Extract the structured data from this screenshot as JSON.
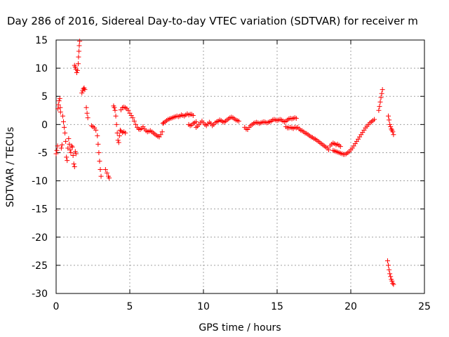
{
  "chart_data": {
    "type": "scatter",
    "title": "Day 286 of 2016, Sidereal Day-to-day VTEC variation (SDTVAR) for receiver m",
    "xlabel": "GPS time / hours",
    "ylabel": "SDTVAR / TECUs",
    "xlim": [
      0,
      25
    ],
    "ylim": [
      -30,
      15
    ],
    "xticks": [
      0,
      5,
      10,
      15,
      20,
      25
    ],
    "yticks": [
      -30,
      -25,
      -20,
      -15,
      -10,
      -5,
      0,
      5,
      10,
      15
    ],
    "grid": true,
    "marker": "+",
    "color": "#ff0000",
    "series": [
      {
        "name": "SDTVAR",
        "points": [
          [
            0.0,
            -5.2
          ],
          [
            0.05,
            -4.6
          ],
          [
            0.1,
            -3.8
          ],
          [
            0.12,
            2.8
          ],
          [
            0.15,
            3.5
          ],
          [
            0.2,
            4.2
          ],
          [
            0.25,
            4.6
          ],
          [
            0.28,
            3.0
          ],
          [
            0.3,
            2.2
          ],
          [
            0.35,
            -4.2
          ],
          [
            0.4,
            -3.6
          ],
          [
            0.45,
            1.5
          ],
          [
            0.5,
            0.5
          ],
          [
            0.55,
            -0.5
          ],
          [
            0.6,
            -1.5
          ],
          [
            0.65,
            -3.0
          ],
          [
            0.7,
            -5.8
          ],
          [
            0.75,
            -6.4
          ],
          [
            0.8,
            -4.2
          ],
          [
            0.85,
            -2.5
          ],
          [
            0.9,
            -3.5
          ],
          [
            0.95,
            -4.5
          ],
          [
            1.0,
            -5.0
          ],
          [
            1.05,
            -3.8
          ],
          [
            1.1,
            -4.0
          ],
          [
            1.15,
            -5.5
          ],
          [
            1.2,
            -7.0
          ],
          [
            1.25,
            -7.5
          ],
          [
            1.3,
            -4.8
          ],
          [
            1.35,
            -5.2
          ],
          [
            1.25,
            10.5
          ],
          [
            1.3,
            10.2
          ],
          [
            1.35,
            9.8
          ],
          [
            1.4,
            9.2
          ],
          [
            1.45,
            9.6
          ],
          [
            1.5,
            10.8
          ],
          [
            1.52,
            12.0
          ],
          [
            1.55,
            13.0
          ],
          [
            1.57,
            14.0
          ],
          [
            1.6,
            14.8
          ],
          [
            1.75,
            5.6
          ],
          [
            1.8,
            6.0
          ],
          [
            1.85,
            6.3
          ],
          [
            1.9,
            6.5
          ],
          [
            1.95,
            6.2
          ],
          [
            2.05,
            3.0
          ],
          [
            2.1,
            2.0
          ],
          [
            2.15,
            1.2
          ],
          [
            2.4,
            -0.2
          ],
          [
            2.5,
            -0.4
          ],
          [
            2.6,
            -0.6
          ],
          [
            2.7,
            -1.0
          ],
          [
            2.8,
            -2.0
          ],
          [
            2.85,
            -3.5
          ],
          [
            2.9,
            -5.0
          ],
          [
            2.95,
            -6.5
          ],
          [
            3.0,
            -8.0
          ],
          [
            3.05,
            -9.2
          ],
          [
            3.35,
            -8.0
          ],
          [
            3.45,
            -8.6
          ],
          [
            3.55,
            -9.2
          ],
          [
            3.6,
            -9.5
          ],
          [
            3.9,
            3.3
          ],
          [
            3.95,
            3.0
          ],
          [
            4.0,
            2.5
          ],
          [
            4.05,
            1.5
          ],
          [
            4.1,
            0.0
          ],
          [
            4.15,
            -1.5
          ],
          [
            4.2,
            -2.8
          ],
          [
            4.25,
            -3.2
          ],
          [
            4.3,
            -2.0
          ],
          [
            4.35,
            -1.0
          ],
          [
            4.4,
            -1.2
          ],
          [
            4.5,
            -1.4
          ],
          [
            4.6,
            -1.3
          ],
          [
            4.7,
            -1.5
          ],
          [
            4.4,
            2.6
          ],
          [
            4.5,
            3.0
          ],
          [
            4.6,
            3.1
          ],
          [
            4.7,
            3.0
          ],
          [
            4.8,
            2.8
          ],
          [
            4.9,
            2.5
          ],
          [
            5.0,
            2.0
          ],
          [
            5.1,
            1.6
          ],
          [
            5.2,
            1.2
          ],
          [
            5.3,
            0.6
          ],
          [
            5.4,
            0.0
          ],
          [
            5.5,
            -0.5
          ],
          [
            5.6,
            -0.8
          ],
          [
            5.7,
            -0.9
          ],
          [
            5.8,
            -0.7
          ],
          [
            5.9,
            -0.4
          ],
          [
            6.0,
            -0.8
          ],
          [
            6.1,
            -1.1
          ],
          [
            6.2,
            -1.3
          ],
          [
            6.3,
            -1.2
          ],
          [
            6.4,
            -1.1
          ],
          [
            6.5,
            -1.3
          ],
          [
            6.6,
            -1.5
          ],
          [
            6.7,
            -1.7
          ],
          [
            6.8,
            -1.9
          ],
          [
            6.9,
            -2.1
          ],
          [
            7.0,
            -2.2
          ],
          [
            7.1,
            -1.8
          ],
          [
            7.2,
            -1.3
          ],
          [
            7.25,
            0.2
          ],
          [
            7.3,
            0.3
          ],
          [
            7.4,
            0.5
          ],
          [
            7.5,
            0.7
          ],
          [
            7.6,
            0.9
          ],
          [
            7.7,
            1.0
          ],
          [
            7.8,
            1.1
          ],
          [
            7.9,
            1.2
          ],
          [
            8.0,
            1.3
          ],
          [
            8.1,
            1.4
          ],
          [
            8.2,
            1.5
          ],
          [
            8.3,
            1.4
          ],
          [
            8.4,
            1.5
          ],
          [
            8.5,
            1.7
          ],
          [
            8.6,
            1.6
          ],
          [
            8.7,
            1.5
          ],
          [
            8.8,
            1.7
          ],
          [
            8.9,
            1.9
          ],
          [
            9.0,
            1.7
          ],
          [
            9.1,
            1.8
          ],
          [
            9.2,
            1.8
          ],
          [
            9.3,
            1.6
          ],
          [
            9.0,
            0.0
          ],
          [
            9.1,
            -0.2
          ],
          [
            9.2,
            -0.1
          ],
          [
            9.3,
            0.2
          ],
          [
            9.4,
            0.3
          ],
          [
            9.5,
            0.5
          ],
          [
            9.5,
            -0.5
          ],
          [
            9.6,
            -0.3
          ],
          [
            9.7,
            0.0
          ],
          [
            9.8,
            0.3
          ],
          [
            9.9,
            0.6
          ],
          [
            10.0,
            0.3
          ],
          [
            10.1,
            0.0
          ],
          [
            10.2,
            -0.2
          ],
          [
            10.3,
            0.1
          ],
          [
            10.4,
            0.4
          ],
          [
            10.5,
            0.2
          ],
          [
            10.6,
            -0.2
          ],
          [
            10.7,
            0.0
          ],
          [
            10.8,
            0.3
          ],
          [
            10.9,
            0.5
          ],
          [
            11.0,
            0.6
          ],
          [
            11.1,
            0.8
          ],
          [
            11.2,
            0.7
          ],
          [
            11.3,
            0.5
          ],
          [
            11.4,
            0.4
          ],
          [
            11.5,
            0.6
          ],
          [
            11.6,
            0.8
          ],
          [
            11.7,
            1.0
          ],
          [
            11.8,
            1.2
          ],
          [
            11.9,
            1.3
          ],
          [
            12.0,
            1.2
          ],
          [
            12.1,
            1.0
          ],
          [
            12.2,
            0.8
          ],
          [
            12.3,
            0.7
          ],
          [
            12.4,
            0.6
          ],
          [
            12.8,
            -0.5
          ],
          [
            12.9,
            -0.8
          ],
          [
            13.0,
            -0.9
          ],
          [
            13.1,
            -0.5
          ],
          [
            13.2,
            -0.2
          ],
          [
            13.3,
            0.0
          ],
          [
            13.4,
            0.2
          ],
          [
            13.5,
            0.3
          ],
          [
            13.6,
            0.4
          ],
          [
            13.7,
            0.3
          ],
          [
            13.8,
            0.2
          ],
          [
            13.9,
            0.3
          ],
          [
            14.0,
            0.4
          ],
          [
            14.1,
            0.5
          ],
          [
            14.2,
            0.4
          ],
          [
            14.3,
            0.3
          ],
          [
            14.4,
            0.4
          ],
          [
            14.5,
            0.5
          ],
          [
            14.6,
            0.6
          ],
          [
            14.7,
            0.8
          ],
          [
            14.8,
            0.9
          ],
          [
            14.9,
            0.8
          ],
          [
            15.0,
            0.7
          ],
          [
            15.1,
            0.8
          ],
          [
            15.2,
            0.9
          ],
          [
            15.3,
            0.8
          ],
          [
            15.4,
            0.6
          ],
          [
            15.5,
            0.5
          ],
          [
            15.6,
            0.6
          ],
          [
            15.7,
            0.8
          ],
          [
            15.8,
            1.0
          ],
          [
            15.9,
            1.1
          ],
          [
            16.0,
            1.0
          ],
          [
            16.1,
            1.1
          ],
          [
            16.2,
            1.2
          ],
          [
            16.3,
            1.1
          ],
          [
            15.6,
            -0.4
          ],
          [
            15.7,
            -0.6
          ],
          [
            15.8,
            -0.6
          ],
          [
            15.9,
            -0.5
          ],
          [
            16.0,
            -0.6
          ],
          [
            16.1,
            -0.7
          ],
          [
            16.2,
            -0.5
          ],
          [
            16.3,
            -0.6
          ],
          [
            16.4,
            -0.5
          ],
          [
            16.5,
            -0.8
          ],
          [
            16.6,
            -1.0
          ],
          [
            16.7,
            -1.1
          ],
          [
            16.8,
            -1.3
          ],
          [
            16.9,
            -1.5
          ],
          [
            17.0,
            -1.6
          ],
          [
            17.1,
            -1.8
          ],
          [
            17.2,
            -2.0
          ],
          [
            17.3,
            -2.2
          ],
          [
            17.4,
            -2.3
          ],
          [
            17.5,
            -2.5
          ],
          [
            17.6,
            -2.6
          ],
          [
            17.7,
            -2.8
          ],
          [
            17.8,
            -3.0
          ],
          [
            17.9,
            -3.2
          ],
          [
            18.0,
            -3.4
          ],
          [
            18.1,
            -3.6
          ],
          [
            18.2,
            -3.8
          ],
          [
            18.3,
            -4.0
          ],
          [
            18.4,
            -4.2
          ],
          [
            18.5,
            -4.5
          ],
          [
            18.6,
            -3.8
          ],
          [
            18.7,
            -3.5
          ],
          [
            18.8,
            -3.3
          ],
          [
            18.9,
            -3.4
          ],
          [
            19.0,
            -3.6
          ],
          [
            19.1,
            -3.5
          ],
          [
            19.2,
            -3.7
          ],
          [
            19.3,
            -3.9
          ],
          [
            18.8,
            -4.6
          ],
          [
            18.9,
            -4.7
          ],
          [
            19.0,
            -4.8
          ],
          [
            19.1,
            -4.9
          ],
          [
            19.2,
            -5.0
          ],
          [
            19.3,
            -5.1
          ],
          [
            19.4,
            -5.2
          ],
          [
            19.5,
            -5.3
          ],
          [
            19.6,
            -5.3
          ],
          [
            19.7,
            -5.2
          ],
          [
            19.8,
            -5.0
          ],
          [
            19.9,
            -4.8
          ],
          [
            20.0,
            -4.5
          ],
          [
            20.1,
            -4.2
          ],
          [
            20.2,
            -3.8
          ],
          [
            20.3,
            -3.4
          ],
          [
            20.4,
            -3.0
          ],
          [
            20.5,
            -2.6
          ],
          [
            20.6,
            -2.2
          ],
          [
            20.7,
            -1.8
          ],
          [
            20.8,
            -1.4
          ],
          [
            20.9,
            -1.0
          ],
          [
            21.0,
            -0.6
          ],
          [
            21.1,
            -0.3
          ],
          [
            21.2,
            0.0
          ],
          [
            21.3,
            0.3
          ],
          [
            21.4,
            0.5
          ],
          [
            21.5,
            0.7
          ],
          [
            21.6,
            0.9
          ],
          [
            21.9,
            2.5
          ],
          [
            21.95,
            3.2
          ],
          [
            22.0,
            4.0
          ],
          [
            22.05,
            4.8
          ],
          [
            22.1,
            5.5
          ],
          [
            22.15,
            6.2
          ],
          [
            22.55,
            1.5
          ],
          [
            22.6,
            0.8
          ],
          [
            22.65,
            0.0
          ],
          [
            22.7,
            -0.4
          ],
          [
            22.75,
            -0.8
          ],
          [
            22.8,
            -1.0
          ],
          [
            22.85,
            -1.3
          ],
          [
            22.9,
            -1.8
          ],
          [
            22.5,
            -24.2
          ],
          [
            22.55,
            -25.0
          ],
          [
            22.6,
            -25.8
          ],
          [
            22.65,
            -26.5
          ],
          [
            22.7,
            -27.0
          ],
          [
            22.75,
            -27.5
          ],
          [
            22.8,
            -27.8
          ],
          [
            22.85,
            -28.2
          ],
          [
            22.9,
            -28.4
          ]
        ]
      }
    ]
  }
}
